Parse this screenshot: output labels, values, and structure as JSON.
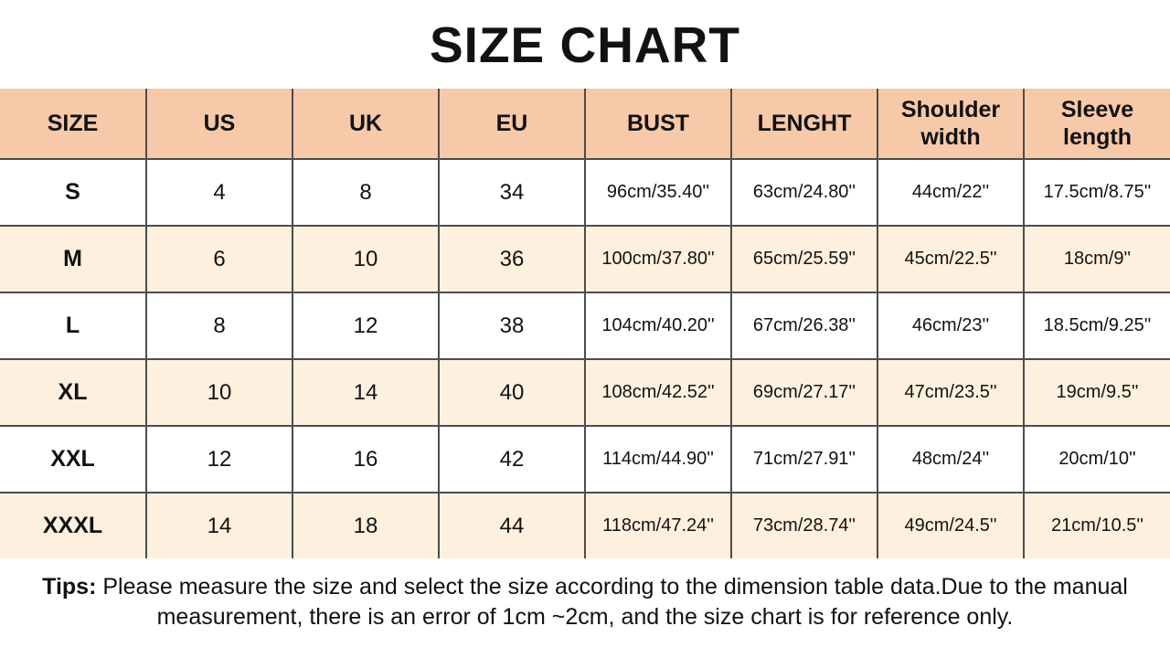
{
  "title": "SIZE CHART",
  "chart_data": {
    "type": "table",
    "title": "SIZE CHART",
    "headers": [
      "SIZE",
      "US",
      "UK",
      "EU",
      "BUST",
      "LENGHT",
      "Shoulder width",
      "Sleeve length"
    ],
    "rows": [
      [
        "S",
        "4",
        "8",
        "34",
        "96cm/35.40''",
        "63cm/24.80''",
        "44cm/22''",
        "17.5cm/8.75''"
      ],
      [
        "M",
        "6",
        "10",
        "36",
        "100cm/37.80''",
        "65cm/25.59''",
        "45cm/22.5''",
        "18cm/9''"
      ],
      [
        "L",
        "8",
        "12",
        "38",
        "104cm/40.20''",
        "67cm/26.38''",
        "46cm/23''",
        "18.5cm/9.25''"
      ],
      [
        "XL",
        "10",
        "14",
        "40",
        "108cm/42.52''",
        "69cm/27.17''",
        "47cm/23.5''",
        "19cm/9.5''"
      ],
      [
        "XXL",
        "12",
        "16",
        "42",
        "114cm/44.90''",
        "71cm/27.91''",
        "48cm/24''",
        "20cm/10''"
      ],
      [
        "XXXL",
        "14",
        "18",
        "44",
        "118cm/47.24''",
        "73cm/28.74''",
        "49cm/24.5''",
        "21cm/10.5''"
      ]
    ]
  },
  "tips": {
    "label": "Tips:",
    "text": "Please measure the size and select the size according to the dimension table data.Due to the manual measurement, there is an error of 1cm ~2cm, and the size chart is for reference only."
  },
  "colors": {
    "header_bg": "#f6c9a8",
    "alt_row_bg": "#fdf0de",
    "row_bg": "#ffffff",
    "border": "#4d4d4d",
    "text": "#121212"
  }
}
